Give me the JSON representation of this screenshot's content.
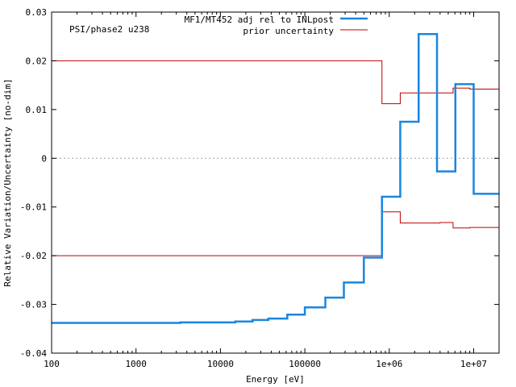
{
  "chart_data": {
    "type": "line",
    "xscale": "log",
    "xlim": [
      100,
      20000000
    ],
    "ylim": [
      -0.04,
      0.03
    ],
    "xlabel": "Energy [eV]",
    "ylabel": "Relative Variation/Uncertainty [no-dim]",
    "annotation": "PSI/phase2 u238",
    "legend_position": "top-right",
    "zero_line": true,
    "x_ticks": [
      {
        "value": 100,
        "label": "100"
      },
      {
        "value": 1000,
        "label": "1000"
      },
      {
        "value": 10000,
        "label": "10000"
      },
      {
        "value": 100000,
        "label": "100000"
      },
      {
        "value": 1000000,
        "label": "1e+06"
      },
      {
        "value": 10000000,
        "label": "1e+07"
      }
    ],
    "y_ticks": [
      {
        "value": -0.04,
        "label": "-0.04"
      },
      {
        "value": -0.03,
        "label": "-0.03"
      },
      {
        "value": -0.02,
        "label": "-0.02"
      },
      {
        "value": -0.01,
        "label": "-0.01"
      },
      {
        "value": 0,
        "label": "0"
      },
      {
        "value": 0.01,
        "label": "0.01"
      },
      {
        "value": 0.02,
        "label": "0.02"
      },
      {
        "value": 0.03,
        "label": "0.03"
      }
    ],
    "series": [
      {
        "name": "MF1/MT452 adj rel to INLpost",
        "color": "#1a86e0",
        "kind": "step",
        "points": [
          [
            100,
            -0.0338
          ],
          [
            3350,
            -0.0337
          ],
          [
            15000,
            -0.0335
          ],
          [
            24000,
            -0.0332
          ],
          [
            37000,
            -0.0329
          ],
          [
            62000,
            -0.0321
          ],
          [
            100000,
            -0.0306
          ],
          [
            175000,
            -0.0286
          ],
          [
            290000,
            -0.0255
          ],
          [
            500000,
            -0.0204
          ],
          [
            820000,
            -0.0079
          ],
          [
            1350000,
            0.0075
          ],
          [
            2230000,
            0.0255
          ],
          [
            3680000,
            -0.0027
          ],
          [
            6070000,
            0.0152
          ],
          [
            10000000,
            -0.0073
          ],
          [
            20000000,
            -0.0073
          ]
        ]
      },
      {
        "name": "prior uncertainty",
        "color": "#c00000",
        "kind": "step",
        "points_upper": [
          [
            100,
            0.02
          ],
          [
            820000,
            0.0112
          ],
          [
            1350000,
            0.0134
          ],
          [
            4000000,
            0.0134
          ],
          [
            5700000,
            0.0144
          ],
          [
            9000000,
            0.0142
          ],
          [
            20000000,
            0.0142
          ]
        ],
        "points_lower": [
          [
            100,
            -0.02
          ],
          [
            820000,
            -0.011
          ],
          [
            1350000,
            -0.0133
          ],
          [
            4000000,
            -0.0132
          ],
          [
            5700000,
            -0.0143
          ],
          [
            9000000,
            -0.0142
          ],
          [
            20000000,
            -0.0142
          ]
        ]
      }
    ]
  }
}
